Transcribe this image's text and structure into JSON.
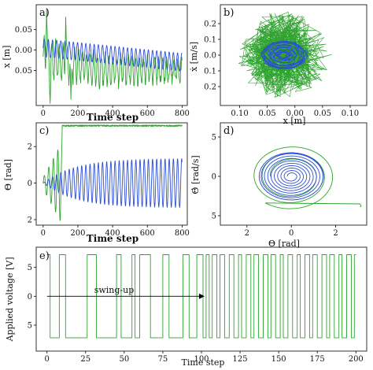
{
  "colors": {
    "green": "#2ea32e",
    "blue": "#2d4fd6",
    "axis": "#000000"
  },
  "panels": {
    "a": {
      "label": "a)",
      "xlabel": "Time step",
      "ylabel": "x [m]"
    },
    "b": {
      "label": "b)",
      "xlabel": "x [m]",
      "ylabel": "ẋ [m/s]"
    },
    "c": {
      "label": "c)",
      "xlabel": "Time step",
      "ylabel": "Θ [rad]"
    },
    "d": {
      "label": "d)",
      "xlabel": "Θ [rad]",
      "ylabel": "Θ̇ [rad/s]"
    },
    "e": {
      "label": "e)",
      "xlabel": "Time step",
      "ylabel": "Applied voltage [V]",
      "annotation": "swing-up"
    }
  },
  "chart_data": [
    {
      "id": "a",
      "type": "line",
      "xlim": [
        -40,
        830
      ],
      "ylim": [
        -0.135,
        0.11
      ],
      "xticks": [
        0,
        200,
        400,
        600,
        800
      ],
      "yticks": [
        0.05,
        0.0,
        -0.05
      ],
      "ytick_labels": [
        "0.05",
        "0.00",
        "0.05"
      ],
      "xlabel": "Time step",
      "ylabel": "x [m]",
      "series": [
        {
          "color": "green",
          "kind": "noisy_decay",
          "t": [
            0,
            800
          ],
          "amp": 0.045,
          "period": 22,
          "offset_start": -0.02,
          "offset_end": -0.05,
          "spikes": [
            [
              20,
              0.1
            ],
            [
              130,
              0.08
            ],
            [
              160,
              -0.12
            ],
            [
              40,
              -0.13
            ]
          ]
        },
        {
          "color": "blue",
          "kind": "sine_decay",
          "t": [
            0,
            800
          ],
          "amp": 0.022,
          "period": 24,
          "offset_start": 0.005,
          "offset_end": -0.03
        }
      ]
    },
    {
      "id": "b",
      "type": "line",
      "xlim": [
        0.135,
        -0.13
      ],
      "ylim": [
        -0.32,
        0.32
      ],
      "xticks": [
        0.1,
        0.05,
        0.0,
        -0.05,
        -0.1
      ],
      "xtick_labels": [
        "0.10",
        "0.05",
        "0.00",
        "0.05",
        "0.10"
      ],
      "yticks": [
        0.2,
        0.1,
        0.0,
        -0.1,
        -0.2
      ],
      "ytick_labels": [
        "0.2",
        "0.1",
        "0.0",
        "0.1",
        "0.2"
      ],
      "xlabel": "x [m]",
      "ylabel": "ẋ [m/s]",
      "series": [
        {
          "color": "green",
          "kind": "phase_scatter",
          "center": [
            0.02,
            0.0
          ],
          "rx": 0.09,
          "ry": 0.28
        },
        {
          "color": "blue",
          "kind": "phase_small",
          "center": [
            0.02,
            0.0
          ],
          "rx": 0.04,
          "ry": 0.09
        }
      ]
    },
    {
      "id": "c",
      "type": "line",
      "xlim": [
        -40,
        830
      ],
      "ylim": [
        -2.3,
        3.3
      ],
      "xticks": [
        0,
        200,
        400,
        600,
        800
      ],
      "yticks": [
        2,
        0,
        -2
      ],
      "ytick_labels": [
        "2",
        "0",
        "2"
      ],
      "xlabel": "Time step",
      "ylabel": "Θ [rad]",
      "series": [
        {
          "color": "green",
          "kind": "swing_up",
          "t": [
            0,
            800
          ],
          "final": 3.14,
          "switch": 100
        },
        {
          "color": "blue",
          "kind": "growing_sine",
          "t": [
            0,
            800
          ],
          "amp_end": 1.35,
          "period": 24
        }
      ]
    },
    {
      "id": "d",
      "type": "line",
      "xlim": [
        3.2,
        -3.4
      ],
      "ylim": [
        -6.2,
        6.8
      ],
      "xticks": [
        2,
        0,
        -2
      ],
      "xtick_labels": [
        "2",
        "0",
        "2"
      ],
      "yticks": [
        5,
        0,
        -5
      ],
      "ytick_labels": [
        "5",
        "0",
        "5"
      ],
      "xlabel": "Θ [rad]",
      "ylabel": "Θ̇ [rad/s]",
      "series": [
        {
          "color": "green",
          "kind": "phase_spiral",
          "rx": 1.9,
          "ry": 4.0
        },
        {
          "color": "blue",
          "kind": "phase_rings",
          "rx": 1.45,
          "ry": 3.0
        }
      ]
    },
    {
      "id": "e",
      "type": "line",
      "xlim": [
        -7,
        207
      ],
      "ylim": [
        -9.5,
        8.5
      ],
      "xticks": [
        0,
        25,
        50,
        75,
        100,
        125,
        150,
        175,
        200
      ],
      "yticks": [
        5,
        0,
        -5
      ],
      "ytick_labels": [
        "5",
        "0",
        "5"
      ],
      "xlabel": "Time step",
      "ylabel": "Applied voltage [V]",
      "arrow": {
        "x0": 0,
        "x1": 102,
        "y": 0
      },
      "series": [
        {
          "color": "green",
          "kind": "square",
          "high": 7.2,
          "low": -7.2,
          "switches": [
            0,
            2,
            8,
            12,
            26,
            32,
            45,
            48,
            55,
            57,
            60,
            67,
            75,
            79,
            88,
            92,
            97,
            101,
            103,
            105,
            107,
            110,
            112,
            115,
            118,
            121,
            124,
            126,
            129,
            132,
            134,
            137,
            140,
            143,
            145,
            148,
            151,
            153,
            156,
            159,
            162,
            164,
            167,
            170,
            172,
            175,
            178,
            181,
            183,
            186,
            189,
            191,
            194,
            197,
            199
          ]
        }
      ]
    }
  ]
}
